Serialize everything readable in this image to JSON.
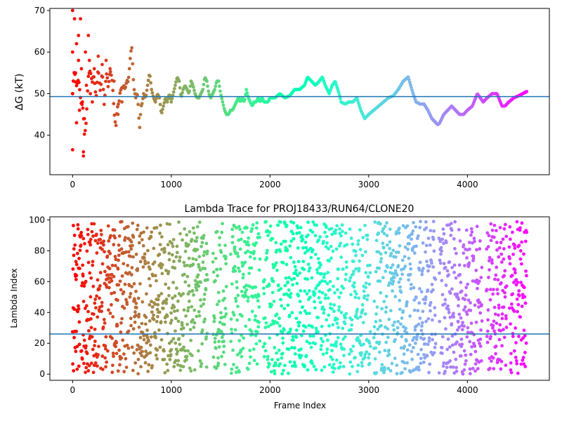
{
  "chart_data": [
    {
      "type": "scatter",
      "title": "",
      "xlabel": "",
      "ylabel": "ΔG (kT)",
      "xlim": [
        -230,
        4830
      ],
      "ylim": [
        30.5,
        70.5
      ],
      "xticks": [
        0,
        1000,
        2000,
        3000,
        4000
      ],
      "yticks": [
        40,
        50,
        60,
        70
      ],
      "hline": 49.3,
      "hline_color": "#1f77b4",
      "colormap": "rainbow",
      "n_frames": 4600,
      "grid": false,
      "legend": "none",
      "trace": [
        [
          0,
          50
        ],
        [
          20,
          55
        ],
        [
          40,
          53
        ],
        [
          60,
          52
        ],
        [
          80,
          50
        ],
        [
          100,
          47
        ],
        [
          120,
          40
        ],
        [
          140,
          45
        ],
        [
          160,
          53
        ],
        [
          180,
          57
        ],
        [
          200,
          52
        ],
        [
          220,
          54
        ],
        [
          240,
          50
        ],
        [
          260,
          55
        ],
        [
          280,
          52
        ],
        [
          300,
          54
        ],
        [
          320,
          48
        ],
        [
          340,
          55
        ],
        [
          360,
          51
        ],
        [
          380,
          57
        ],
        [
          400,
          52
        ],
        [
          420,
          47
        ],
        [
          440,
          42
        ],
        [
          460,
          47
        ],
        [
          480,
          51
        ],
        [
          500,
          50
        ],
        [
          520,
          53
        ],
        [
          540,
          51
        ],
        [
          560,
          53
        ],
        [
          580,
          58
        ],
        [
          600,
          60
        ],
        [
          620,
          53
        ],
        [
          640,
          48
        ],
        [
          660,
          50
        ],
        [
          680,
          42
        ],
        [
          700,
          47
        ],
        [
          720,
          50
        ],
        [
          740,
          49
        ],
        [
          760,
          52
        ],
        [
          780,
          55
        ],
        [
          800,
          51
        ],
        [
          820,
          49
        ],
        [
          840,
          48
        ],
        [
          860,
          50
        ],
        [
          880,
          49
        ],
        [
          900,
          45
        ],
        [
          920,
          47
        ],
        [
          940,
          49
        ],
        [
          960,
          48
        ],
        [
          980,
          50
        ],
        [
          1000,
          48
        ],
        [
          1020,
          50
        ],
        [
          1040,
          52
        ],
        [
          1060,
          54
        ],
        [
          1080,
          53
        ],
        [
          1100,
          49
        ],
        [
          1120,
          51
        ],
        [
          1140,
          52
        ],
        [
          1160,
          51
        ],
        [
          1180,
          50
        ],
        [
          1200,
          53
        ],
        [
          1220,
          52
        ],
        [
          1240,
          50
        ],
        [
          1260,
          49
        ],
        [
          1280,
          49
        ],
        [
          1300,
          50
        ],
        [
          1320,
          51
        ],
        [
          1340,
          54
        ],
        [
          1360,
          53
        ],
        [
          1380,
          50
        ],
        [
          1400,
          49
        ],
        [
          1420,
          50
        ],
        [
          1440,
          51
        ],
        [
          1460,
          53
        ],
        [
          1480,
          53
        ],
        [
          1500,
          50
        ],
        [
          1520,
          48
        ],
        [
          1540,
          46
        ],
        [
          1560,
          45
        ],
        [
          1580,
          45
        ],
        [
          1600,
          46
        ],
        [
          1620,
          46
        ],
        [
          1640,
          47
        ],
        [
          1660,
          48
        ],
        [
          1680,
          49
        ],
        [
          1700,
          48
        ],
        [
          1720,
          49
        ],
        [
          1740,
          48
        ],
        [
          1760,
          51
        ],
        [
          1780,
          49
        ],
        [
          1800,
          48
        ],
        [
          1820,
          47
        ],
        [
          1840,
          48
        ],
        [
          1860,
          48
        ],
        [
          1880,
          49
        ],
        [
          1900,
          48
        ],
        [
          1920,
          49
        ],
        [
          1940,
          48
        ],
        [
          1960,
          48
        ],
        [
          1980,
          48
        ],
        [
          2000,
          49
        ],
        [
          2050,
          49
        ],
        [
          2100,
          50
        ],
        [
          2150,
          49
        ],
        [
          2200,
          49.5
        ],
        [
          2250,
          51
        ],
        [
          2300,
          51
        ],
        [
          2350,
          52
        ],
        [
          2380,
          54
        ],
        [
          2420,
          53
        ],
        [
          2460,
          52
        ],
        [
          2500,
          53
        ],
        [
          2530,
          54
        ],
        [
          2560,
          52
        ],
        [
          2600,
          50
        ],
        [
          2630,
          52
        ],
        [
          2660,
          53
        ],
        [
          2700,
          50
        ],
        [
          2720,
          48
        ],
        [
          2760,
          47.5
        ],
        [
          2800,
          48
        ],
        [
          2840,
          48
        ],
        [
          2880,
          49
        ],
        [
          2920,
          46
        ],
        [
          2960,
          44
        ],
        [
          3000,
          45
        ],
        [
          3050,
          46
        ],
        [
          3100,
          47
        ],
        [
          3150,
          48
        ],
        [
          3200,
          49
        ],
        [
          3250,
          49.5
        ],
        [
          3300,
          51
        ],
        [
          3350,
          53
        ],
        [
          3400,
          54
        ],
        [
          3450,
          50
        ],
        [
          3480,
          48
        ],
        [
          3520,
          47.5
        ],
        [
          3560,
          47.5
        ],
        [
          3600,
          46
        ],
        [
          3640,
          44
        ],
        [
          3680,
          43
        ],
        [
          3700,
          42.5
        ],
        [
          3720,
          43
        ],
        [
          3760,
          45
        ],
        [
          3800,
          46
        ],
        [
          3840,
          47
        ],
        [
          3880,
          46
        ],
        [
          3920,
          45
        ],
        [
          3960,
          45
        ],
        [
          4000,
          46
        ],
        [
          4050,
          47
        ],
        [
          4100,
          50
        ],
        [
          4130,
          49
        ],
        [
          4160,
          48
        ],
        [
          4200,
          49
        ],
        [
          4250,
          50
        ],
        [
          4300,
          50
        ],
        [
          4350,
          47
        ],
        [
          4380,
          47
        ],
        [
          4420,
          48
        ],
        [
          4470,
          49
        ],
        [
          4520,
          49.5
        ],
        [
          4560,
          50
        ],
        [
          4600,
          50.5
        ]
      ],
      "outliers": [
        [
          0,
          70
        ],
        [
          0,
          60
        ],
        [
          0,
          50
        ],
        [
          0,
          36.5
        ],
        [
          20,
          68
        ],
        [
          30,
          55
        ],
        [
          40,
          62
        ],
        [
          40,
          43
        ],
        [
          60,
          64
        ],
        [
          60,
          58
        ],
        [
          70,
          46
        ],
        [
          80,
          68
        ],
        [
          90,
          56
        ],
        [
          100,
          48
        ],
        [
          110,
          35
        ],
        [
          110,
          36
        ],
        [
          120,
          44
        ],
        [
          130,
          60
        ],
        [
          140,
          52
        ],
        [
          160,
          64
        ],
        [
          170,
          58
        ],
        [
          180,
          50
        ],
        [
          200,
          48
        ],
        [
          220,
          56
        ],
        [
          260,
          59
        ],
        [
          300,
          57
        ],
        [
          340,
          58
        ],
        [
          380,
          56
        ],
        [
          420,
          53
        ],
        [
          460,
          45
        ],
        [
          500,
          48
        ]
      ]
    },
    {
      "type": "scatter",
      "title": "Lambda Trace for PROJ18433/RUN64/CLONE20",
      "xlabel": "Frame Index",
      "ylabel": "Lambda Index",
      "xlim": [
        -230,
        4830
      ],
      "ylim": [
        -4,
        102
      ],
      "xticks": [
        0,
        1000,
        2000,
        3000,
        4000
      ],
      "yticks": [
        0,
        20,
        40,
        60,
        80,
        100
      ],
      "hline": 26,
      "hline_color": "#1f77b4",
      "colormap": "rainbow",
      "n_frames": 4600,
      "value_range": [
        0,
        99
      ],
      "grid": false,
      "legend": "none"
    }
  ]
}
